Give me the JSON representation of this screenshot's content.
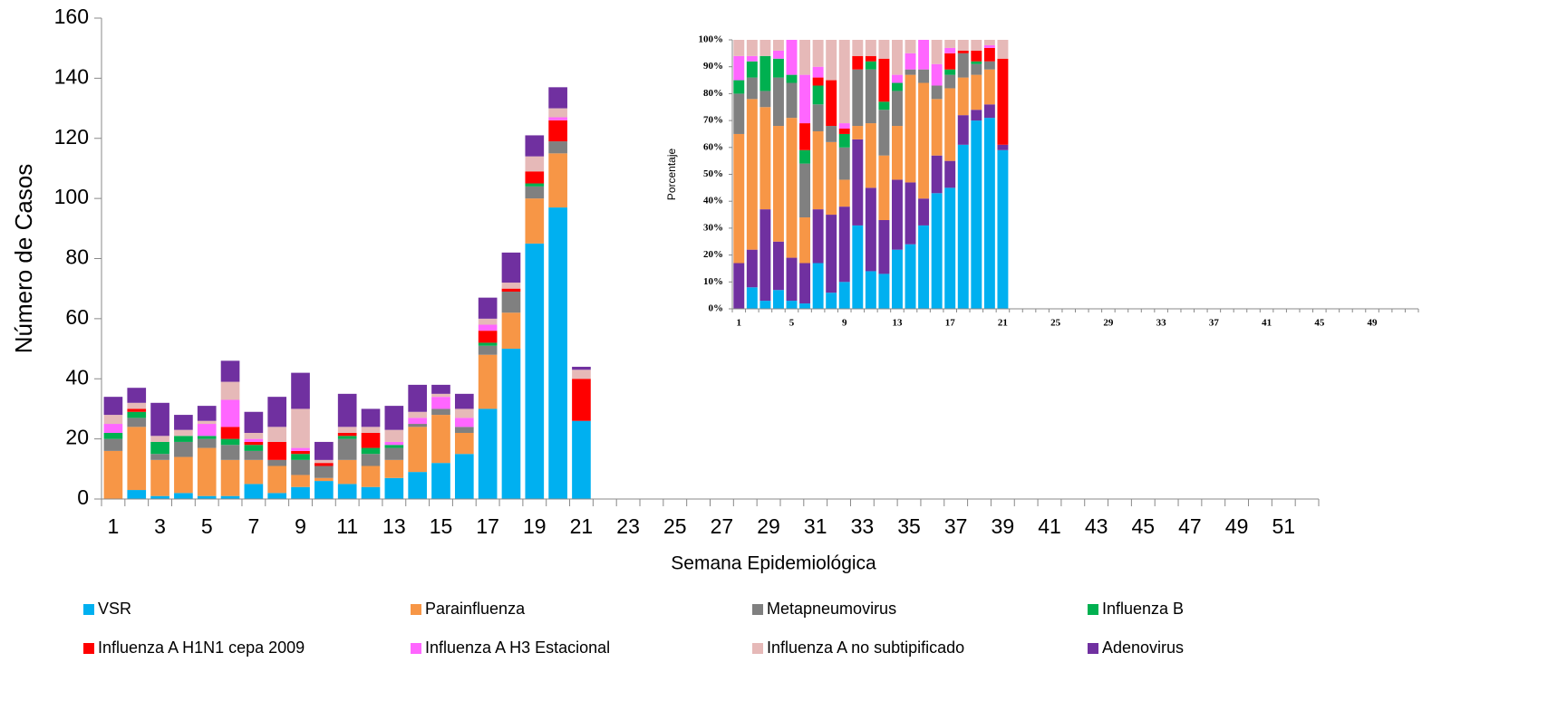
{
  "chart_data": [
    {
      "type": "stacked_bar",
      "ylabel": "Número de Casos",
      "xlabel": "Semana Epidemiológica",
      "ylim": [
        0,
        160
      ],
      "yticks": [
        0,
        20,
        40,
        60,
        80,
        100,
        120,
        140,
        160
      ],
      "legend": "bottom",
      "categories": [
        "1",
        null,
        "3",
        null,
        "5",
        null,
        "7",
        null,
        "9",
        null,
        "11",
        null,
        "13",
        null,
        "15",
        null,
        "17",
        null,
        "19",
        null,
        "21",
        null,
        "23",
        null,
        "25",
        null,
        "27",
        null,
        "29",
        null,
        "31",
        null,
        "33",
        null,
        "35",
        null,
        "37",
        null,
        "39",
        null,
        "41",
        null,
        "43",
        null,
        "45",
        null,
        "47",
        null,
        "49",
        null,
        "51",
        null
      ],
      "series": [
        {
          "name": "VSR",
          "color": "#00b0f0",
          "values": [
            0,
            3,
            1,
            2,
            1,
            1,
            5,
            2,
            4,
            6,
            5,
            4,
            7,
            9,
            12,
            15,
            30,
            50,
            85,
            97,
            26,
            null,
            null,
            null,
            null,
            null,
            null,
            null,
            null,
            null,
            null,
            null,
            null,
            null,
            null,
            null,
            null,
            null,
            null,
            null,
            null,
            null,
            null,
            null,
            null,
            null,
            null,
            null,
            null,
            null,
            null,
            null
          ]
        },
        {
          "name": "Parainfluenza",
          "color": "#f79646",
          "values": [
            16,
            21,
            12,
            12,
            16,
            12,
            8,
            9,
            4,
            1,
            8,
            7,
            6,
            15,
            16,
            7,
            18,
            12,
            15,
            18,
            0,
            null,
            null,
            null,
            null,
            null,
            null,
            null,
            null,
            null,
            null,
            null,
            null,
            null,
            null,
            null,
            null,
            null,
            null,
            null,
            null,
            null,
            null,
            null,
            null,
            null,
            null,
            null,
            null,
            null,
            null,
            null
          ]
        },
        {
          "name": "Metapneumovirus",
          "color": "#808080",
          "values": [
            4,
            3,
            2,
            5,
            3,
            5,
            3,
            2,
            5,
            4,
            7,
            4,
            4,
            1,
            2,
            2,
            3,
            7,
            4,
            4,
            0,
            null,
            null,
            null,
            null,
            null,
            null,
            null,
            null,
            null,
            null,
            null,
            null,
            null,
            null,
            null,
            null,
            null,
            null,
            null,
            null,
            null,
            null,
            null,
            null,
            null,
            null,
            null,
            null,
            null,
            null,
            null
          ]
        },
        {
          "name": "Influenza B",
          "color": "#00b050",
          "values": [
            2,
            2,
            4,
            2,
            1,
            2,
            2,
            0,
            2,
            0,
            1,
            2,
            1,
            0,
            0,
            0,
            1,
            0,
            1,
            0,
            0,
            null,
            null,
            null,
            null,
            null,
            null,
            null,
            null,
            null,
            null,
            null,
            null,
            null,
            null,
            null,
            null,
            null,
            null,
            null,
            null,
            null,
            null,
            null,
            null,
            null,
            null,
            null,
            null,
            null,
            null,
            null
          ]
        },
        {
          "name": "Influenza A H1N1 cepa 2009",
          "color": "#ff0000",
          "values": [
            0,
            1,
            0,
            0,
            0,
            4,
            1,
            6,
            1,
            1,
            1,
            5,
            0,
            0,
            0,
            0,
            4,
            1,
            4,
            7,
            14,
            null,
            null,
            null,
            null,
            null,
            null,
            null,
            null,
            null,
            null,
            null,
            null,
            null,
            null,
            null,
            null,
            null,
            null,
            null,
            null,
            null,
            null,
            null,
            null,
            null,
            null,
            null,
            null,
            null,
            null,
            null
          ]
        },
        {
          "name": " Influenza A H3 Estacional",
          "color": "#ff66ff",
          "values": [
            3,
            0,
            0,
            0,
            4,
            9,
            1,
            0,
            1,
            0,
            0,
            0,
            1,
            2,
            4,
            3,
            2,
            0,
            0,
            1,
            0,
            null,
            null,
            null,
            null,
            null,
            null,
            null,
            null,
            null,
            null,
            null,
            null,
            null,
            null,
            null,
            null,
            null,
            null,
            null,
            null,
            null,
            null,
            null,
            null,
            null,
            null,
            null,
            null,
            null,
            null,
            null
          ]
        },
        {
          "name": "Influenza A no subtipificado",
          "color": "#e6b9b8",
          "values": [
            3,
            2,
            2,
            2,
            1,
            6,
            2,
            5,
            13,
            1,
            2,
            2,
            4,
            2,
            1,
            3,
            2,
            2,
            5,
            3,
            3,
            null,
            null,
            null,
            null,
            null,
            null,
            null,
            null,
            null,
            null,
            null,
            null,
            null,
            null,
            null,
            null,
            null,
            null,
            null,
            null,
            null,
            null,
            null,
            null,
            null,
            null,
            null,
            null,
            null,
            null,
            null
          ]
        },
        {
          "name": "Adenovirus",
          "color": "#7030a0",
          "values": [
            6,
            5,
            11,
            5,
            5,
            7,
            7,
            10,
            12,
            6,
            11,
            6,
            8,
            9,
            3,
            5,
            7,
            10,
            7,
            7,
            1,
            null,
            null,
            null,
            null,
            null,
            null,
            null,
            null,
            null,
            null,
            null,
            null,
            null,
            null,
            null,
            null,
            null,
            null,
            null,
            null,
            null,
            null,
            null,
            null,
            null,
            null,
            null,
            null,
            null,
            null,
            null
          ]
        }
      ]
    },
    {
      "type": "stacked_bar",
      "ylabel": "Porcentaje",
      "ylim": [
        0,
        100
      ],
      "yticks": [
        {
          "value": 0,
          "label": "0%"
        },
        {
          "value": 10,
          "label": "10%"
        },
        {
          "value": 20,
          "label": "20%"
        },
        {
          "value": 30,
          "label": "30%"
        },
        {
          "value": 40,
          "label": "40%"
        },
        {
          "value": 50,
          "label": "50%"
        },
        {
          "value": 60,
          "label": "60%"
        },
        {
          "value": 70,
          "label": "70%"
        },
        {
          "value": 80,
          "label": "80%"
        },
        {
          "value": 90,
          "label": "90%"
        },
        {
          "value": 100,
          "label": "100%"
        }
      ],
      "categories": [
        "1",
        null,
        null,
        null,
        "5",
        null,
        null,
        null,
        "9",
        null,
        null,
        null,
        "13",
        null,
        null,
        null,
        "17",
        null,
        null,
        null,
        "21",
        null,
        null,
        null,
        "25",
        null,
        null,
        null,
        "29",
        null,
        null,
        null,
        "33",
        null,
        null,
        null,
        "37",
        null,
        null,
        null,
        "41",
        null,
        null,
        null,
        "45",
        null,
        null,
        null,
        "49",
        null,
        null,
        null
      ],
      "series": [
        {
          "color": "#00b0f0",
          "values": [
            0,
            8,
            3,
            7,
            3,
            2,
            17,
            6,
            10,
            31,
            14,
            13,
            22,
            24,
            31,
            43,
            45,
            61,
            70,
            71,
            59,
            null,
            null,
            null,
            null,
            null,
            null,
            null,
            null,
            null,
            null,
            null,
            null,
            null,
            null,
            null,
            null,
            null,
            null,
            null,
            null,
            null,
            null,
            null,
            null,
            null,
            null,
            null,
            null,
            null,
            null,
            null
          ]
        },
        {
          "color": "#7030a0",
          "values": [
            17,
            14,
            34,
            18,
            16,
            15,
            20,
            29,
            28,
            32,
            31,
            20,
            26,
            23,
            10,
            14,
            10,
            11,
            4,
            5,
            2,
            null,
            null,
            null,
            null,
            null,
            null,
            null,
            null,
            null,
            null,
            null,
            null,
            null,
            null,
            null,
            null,
            null,
            null,
            null,
            null,
            null,
            null,
            null,
            null,
            null,
            null,
            null,
            null,
            null,
            null,
            null
          ]
        },
        {
          "color": "#f79646",
          "values": [
            48,
            56,
            38,
            43,
            52,
            17,
            29,
            27,
            10,
            5,
            24,
            24,
            20,
            40,
            43,
            21,
            27,
            14,
            13,
            13,
            0,
            null,
            null,
            null,
            null,
            null,
            null,
            null,
            null,
            null,
            null,
            null,
            null,
            null,
            null,
            null,
            null,
            null,
            null,
            null,
            null,
            null,
            null,
            null,
            null,
            null,
            null,
            null,
            null,
            null,
            null,
            null
          ]
        },
        {
          "color": "#808080",
          "values": [
            15,
            8,
            6,
            18,
            13,
            20,
            10,
            6,
            12,
            21,
            20,
            17,
            13,
            2,
            5,
            5,
            5,
            9,
            4,
            3,
            0,
            null,
            null,
            null,
            null,
            null,
            null,
            null,
            null,
            null,
            null,
            null,
            null,
            null,
            null,
            null,
            null,
            null,
            null,
            null,
            null,
            null,
            null,
            null,
            null,
            null,
            null,
            null,
            null,
            null,
            null,
            null
          ]
        },
        {
          "color": "#00b050",
          "values": [
            5,
            6,
            13,
            7,
            3,
            5,
            7,
            0,
            5,
            0,
            3,
            3,
            3,
            0,
            0,
            0,
            2,
            0,
            1,
            0,
            0,
            null,
            null,
            null,
            null,
            null,
            null,
            null,
            null,
            null,
            null,
            null,
            null,
            null,
            null,
            null,
            null,
            null,
            null,
            null,
            null,
            null,
            null,
            null,
            null,
            null,
            null,
            null,
            null,
            null,
            null,
            null
          ]
        },
        {
          "color": "#ff0000",
          "values": [
            0,
            0,
            0,
            0,
            0,
            10,
            3,
            17,
            2,
            5,
            2,
            16,
            0,
            0,
            0,
            0,
            6,
            1,
            4,
            5,
            32,
            null,
            null,
            null,
            null,
            null,
            null,
            null,
            null,
            null,
            null,
            null,
            null,
            null,
            null,
            null,
            null,
            null,
            null,
            null,
            null,
            null,
            null,
            null,
            null,
            null,
            null,
            null,
            null,
            null,
            null,
            null
          ]
        },
        {
          "color": "#ff66ff",
          "values": [
            9,
            2,
            0,
            3,
            13,
            18,
            4,
            0,
            2,
            0,
            0,
            0,
            3,
            6,
            11,
            8,
            2,
            0,
            0,
            1,
            0,
            null,
            null,
            null,
            null,
            null,
            null,
            null,
            null,
            null,
            null,
            null,
            null,
            null,
            null,
            null,
            null,
            null,
            null,
            null,
            null,
            null,
            null,
            null,
            null,
            null,
            null,
            null,
            null,
            null,
            null,
            null
          ]
        },
        {
          "color": "#e6b9b8",
          "values": [
            6,
            6,
            6,
            4,
            0,
            13,
            10,
            15,
            31,
            6,
            6,
            7,
            13,
            5,
            0,
            9,
            3,
            4,
            4,
            2,
            7,
            null,
            null,
            null,
            null,
            null,
            null,
            null,
            null,
            null,
            null,
            null,
            null,
            null,
            null,
            null,
            null,
            null,
            null,
            null,
            null,
            null,
            null,
            null,
            null,
            null,
            null,
            null,
            null,
            null,
            null,
            null
          ]
        }
      ]
    }
  ]
}
